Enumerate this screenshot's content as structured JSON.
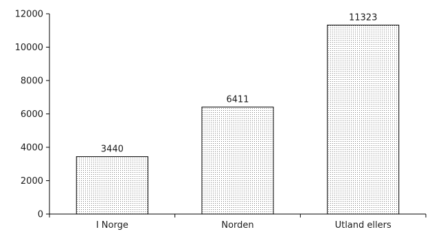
{
  "chart_data": {
    "type": "bar",
    "title": "",
    "xlabel": "",
    "ylabel": "",
    "categories": [
      "I Norge",
      "Norden",
      "Utland ellers"
    ],
    "values": [
      3440,
      6411,
      11323
    ],
    "data_labels": [
      "3440",
      "6411",
      "11323"
    ],
    "ylim": [
      0,
      12000
    ],
    "yticks": [
      0,
      2000,
      4000,
      6000,
      8000,
      10000,
      12000
    ],
    "ytick_labels": [
      "0",
      "2000",
      "4000",
      "6000",
      "8000",
      "10000",
      "12000"
    ],
    "grid": false,
    "legend": "none",
    "bar_fill": "dotted-pattern",
    "colors": {
      "bar_stroke": "#000000",
      "bar_dots": "#7a7a7a",
      "background": "#ffffff"
    }
  }
}
